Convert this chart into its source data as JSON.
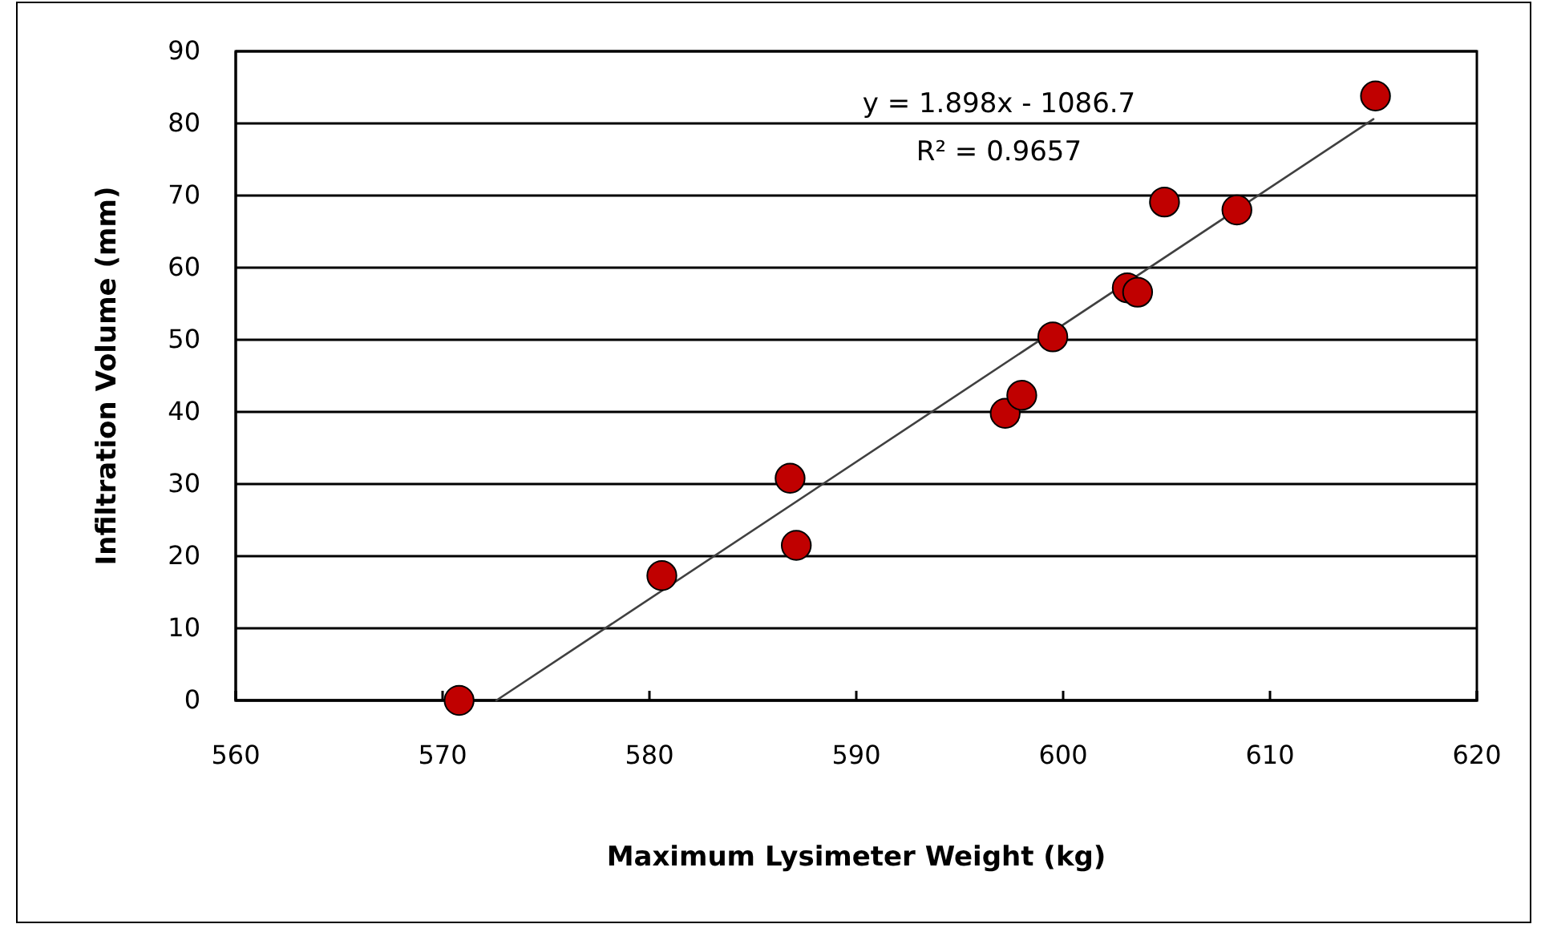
{
  "chart_data": {
    "type": "scatter",
    "xlabel": "Maximum Lysimeter Weight (kg)",
    "ylabel": "Infiltration Volume (mm)",
    "xlim": [
      560,
      620
    ],
    "xticks": [
      560,
      570,
      580,
      590,
      600,
      610,
      620
    ],
    "ylim": [
      0,
      90
    ],
    "yticks": [
      0,
      10,
      20,
      30,
      40,
      50,
      60,
      70,
      80,
      90
    ],
    "grid": "y",
    "series": [
      {
        "marker": "circle",
        "color": "#c00000",
        "x": [
          570.8,
          580.6,
          586.8,
          587.1,
          597.2,
          598.0,
          599.5,
          603.1,
          603.6,
          604.9,
          608.4,
          615.1
        ],
        "values": [
          0,
          17.3,
          30.8,
          21.5,
          39.8,
          42.3,
          50.4,
          57.2,
          56.6,
          69.1,
          68.0,
          83.8
        ]
      },
      {
        "type": "line",
        "color": "#404040",
        "line_style": "solid",
        "x": [
          572.6,
          615
        ],
        "values": [
          0,
          80.6
        ]
      }
    ],
    "annotations": [
      "y = 1.898x - 1086.7",
      "R² = 0.9657"
    ]
  }
}
